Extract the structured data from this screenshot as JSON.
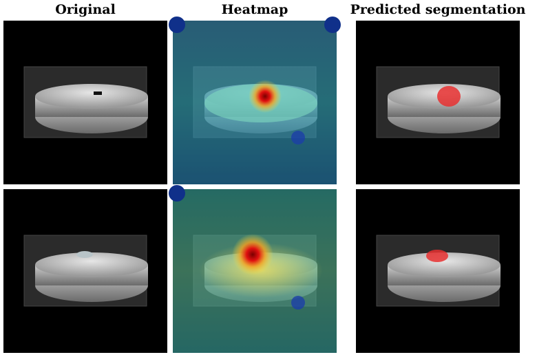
{
  "columns": [
    "Original",
    "Heatmap",
    "Predicted segmentation"
  ]
}
